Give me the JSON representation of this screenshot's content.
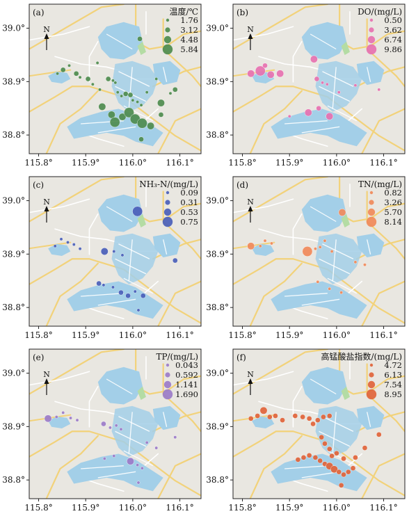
{
  "figure": {
    "tick_labels": {
      "x": [
        "115.8°",
        "115.9°",
        "116.0°",
        "116.1°"
      ],
      "y": [
        "39.0°",
        "38.9°",
        "38.8°"
      ]
    },
    "x_ticks": [
      115.8,
      115.9,
      116.0,
      116.1
    ],
    "y_ticks": [
      39.0,
      38.9,
      38.8
    ],
    "north_label": "N",
    "colors": {
      "land": "#e9e7e1",
      "lake": "#a3cfe8",
      "road_major": "#f2d27a",
      "road_minor": "#ffffff",
      "green_patch": "#b4dca4",
      "frame": "#222222"
    }
  },
  "panels": [
    {
      "tag": "(a)",
      "title": "温度/℃",
      "color": "#4e8c4e",
      "legend": [
        "1.76",
        "3.12",
        "4.48",
        "5.84"
      ],
      "points": [
        [
          115.84,
          38.915,
          1
        ],
        [
          115.852,
          38.922,
          2
        ],
        [
          115.865,
          38.93,
          1
        ],
        [
          115.88,
          38.915,
          2
        ],
        [
          115.888,
          38.908,
          1
        ],
        [
          115.905,
          38.905,
          2
        ],
        [
          115.915,
          38.895,
          1
        ],
        [
          115.93,
          38.885,
          1
        ],
        [
          115.948,
          38.905,
          2
        ],
        [
          115.958,
          38.902,
          1
        ],
        [
          115.963,
          38.898,
          1
        ],
        [
          115.968,
          38.88,
          1
        ],
        [
          115.976,
          38.873,
          1
        ],
        [
          115.985,
          38.877,
          2
        ],
        [
          115.995,
          38.875,
          2
        ],
        [
          116.0,
          38.865,
          1
        ],
        [
          116.01,
          38.862,
          1
        ],
        [
          116.018,
          38.856,
          1
        ],
        [
          116.03,
          38.88,
          1
        ],
        [
          116.05,
          38.905,
          1
        ],
        [
          116.09,
          38.885,
          2
        ],
        [
          116.08,
          38.878,
          1
        ],
        [
          115.935,
          38.853,
          3
        ],
        [
          115.955,
          38.838,
          3
        ],
        [
          115.962,
          38.824,
          4
        ],
        [
          115.978,
          38.834,
          3
        ],
        [
          115.992,
          38.842,
          4
        ],
        [
          116.005,
          38.83,
          4
        ],
        [
          116.02,
          38.822,
          4
        ],
        [
          116.038,
          38.817,
          3
        ],
        [
          116.06,
          38.86,
          3
        ],
        [
          116.06,
          38.838,
          2
        ],
        [
          116.018,
          38.792,
          2
        ],
        [
          116.015,
          38.98,
          2
        ],
        [
          115.925,
          38.935,
          1
        ]
      ]
    },
    {
      "tag": "(b)",
      "title": "DO/(mg/L)",
      "color": "#e672b0",
      "legend": [
        "0.50",
        "3.62",
        "6.74",
        "9.86"
      ],
      "points": [
        [
          115.818,
          38.915,
          3
        ],
        [
          115.838,
          38.92,
          4
        ],
        [
          115.848,
          38.93,
          2
        ],
        [
          115.86,
          38.913,
          3
        ],
        [
          115.88,
          38.915,
          3
        ],
        [
          115.952,
          38.942,
          3
        ],
        [
          115.958,
          38.905,
          2
        ],
        [
          115.97,
          38.898,
          1
        ],
        [
          115.98,
          38.895,
          1
        ],
        [
          115.94,
          38.842,
          3
        ],
        [
          115.962,
          38.85,
          2
        ],
        [
          115.985,
          38.835,
          3
        ],
        [
          115.9,
          38.835,
          1
        ],
        [
          116.005,
          38.88,
          1
        ],
        [
          116.04,
          38.893,
          1
        ],
        [
          116.09,
          38.885,
          1
        ]
      ]
    },
    {
      "tag": "(c)",
      "title": "NH₃-N/(mg/L)",
      "color": "#4a5fb8",
      "legend": [
        "0.09",
        "0.31",
        "0.53",
        "0.75"
      ],
      "points": [
        [
          115.835,
          38.915,
          1
        ],
        [
          115.848,
          38.928,
          1
        ],
        [
          115.862,
          38.922,
          1
        ],
        [
          115.875,
          38.918,
          1
        ],
        [
          115.888,
          38.91,
          1
        ],
        [
          115.94,
          38.905,
          3
        ],
        [
          116.01,
          38.98,
          4
        ],
        [
          116.09,
          38.888,
          2
        ],
        [
          115.928,
          38.845,
          2
        ],
        [
          115.938,
          38.842,
          1
        ],
        [
          115.958,
          38.838,
          1
        ],
        [
          115.975,
          38.828,
          2
        ],
        [
          115.99,
          38.822,
          2
        ],
        [
          116.005,
          38.83,
          1
        ],
        [
          116.022,
          38.822,
          2
        ],
        [
          116.012,
          38.795,
          1
        ],
        [
          115.96,
          38.905,
          1
        ],
        [
          115.978,
          38.898,
          1
        ]
      ]
    },
    {
      "tag": "(d)",
      "title": "TN/(mg/L)",
      "color": "#f08a5a",
      "legend": [
        "0.82",
        "3.26",
        "5.70",
        "8.14"
      ],
      "points": [
        [
          115.818,
          38.915,
          3
        ],
        [
          115.838,
          38.915,
          1
        ],
        [
          115.848,
          38.925,
          1
        ],
        [
          115.862,
          38.92,
          1
        ],
        [
          115.938,
          38.905,
          4
        ],
        [
          115.955,
          38.91,
          1
        ],
        [
          115.965,
          38.913,
          1
        ],
        [
          115.975,
          38.925,
          1
        ],
        [
          116.012,
          38.978,
          3
        ],
        [
          115.99,
          38.905,
          1
        ],
        [
          116.04,
          38.885,
          1
        ],
        [
          116.06,
          38.88,
          1
        ],
        [
          115.96,
          38.848,
          1
        ],
        [
          115.985,
          38.835,
          1
        ],
        [
          116.01,
          38.828,
          1
        ]
      ]
    },
    {
      "tag": "(e)",
      "title": "TP/(mg/L)",
      "color": "#9b7cc8",
      "legend": [
        "0.043",
        "0.592",
        "1.141",
        "1.690"
      ],
      "points": [
        [
          115.82,
          38.915,
          3
        ],
        [
          115.838,
          38.918,
          1
        ],
        [
          115.852,
          38.926,
          1
        ],
        [
          115.868,
          38.916,
          1
        ],
        [
          115.882,
          38.912,
          1
        ],
        [
          115.938,
          38.905,
          2
        ],
        [
          115.952,
          38.898,
          1
        ],
        [
          115.965,
          38.902,
          1
        ],
        [
          115.975,
          38.895,
          1
        ],
        [
          115.995,
          38.835,
          3
        ],
        [
          115.94,
          38.84,
          1
        ],
        [
          115.96,
          38.845,
          1
        ],
        [
          116.01,
          38.828,
          1
        ],
        [
          116.02,
          38.822,
          1
        ],
        [
          116.012,
          38.795,
          1
        ],
        [
          116.09,
          38.88,
          1
        ],
        [
          116.05,
          38.86,
          1
        ],
        [
          116.03,
          38.87,
          1
        ]
      ]
    },
    {
      "tag": "(f)",
      "title": "高锰酸盐指数/(mg/L)",
      "color": "#e0643a",
      "legend": [
        "4.72",
        "6.13",
        "7.54",
        "8.95"
      ],
      "points": [
        [
          115.818,
          38.915,
          2
        ],
        [
          115.832,
          38.92,
          2
        ],
        [
          115.845,
          38.93,
          3
        ],
        [
          115.858,
          38.918,
          2
        ],
        [
          115.87,
          38.92,
          2
        ],
        [
          115.885,
          38.912,
          2
        ],
        [
          115.912,
          38.92,
          2
        ],
        [
          115.928,
          38.918,
          2
        ],
        [
          115.942,
          38.915,
          2
        ],
        [
          115.95,
          38.905,
          2
        ],
        [
          115.96,
          38.912,
          2
        ],
        [
          115.972,
          38.918,
          2
        ],
        [
          115.985,
          38.92,
          2
        ],
        [
          115.968,
          38.88,
          2
        ],
        [
          115.975,
          38.868,
          2
        ],
        [
          115.985,
          38.858,
          2
        ],
        [
          115.918,
          38.838,
          2
        ],
        [
          115.93,
          38.842,
          2
        ],
        [
          115.942,
          38.846,
          2
        ],
        [
          115.955,
          38.842,
          2
        ],
        [
          115.965,
          38.836,
          2
        ],
        [
          115.975,
          38.83,
          2
        ],
        [
          115.985,
          38.826,
          3
        ],
        [
          115.995,
          38.82,
          3
        ],
        [
          116.005,
          38.815,
          2
        ],
        [
          116.015,
          38.81,
          2
        ],
        [
          116.025,
          38.815,
          2
        ],
        [
          116.035,
          38.822,
          2
        ],
        [
          116.01,
          38.79,
          2
        ],
        [
          116.06,
          38.86,
          2
        ],
        [
          116.09,
          38.885,
          2
        ],
        [
          116.0,
          38.85,
          2
        ],
        [
          116.015,
          38.84,
          2
        ],
        [
          115.99,
          38.845,
          2
        ],
        [
          116.04,
          38.842,
          2
        ]
      ]
    }
  ]
}
